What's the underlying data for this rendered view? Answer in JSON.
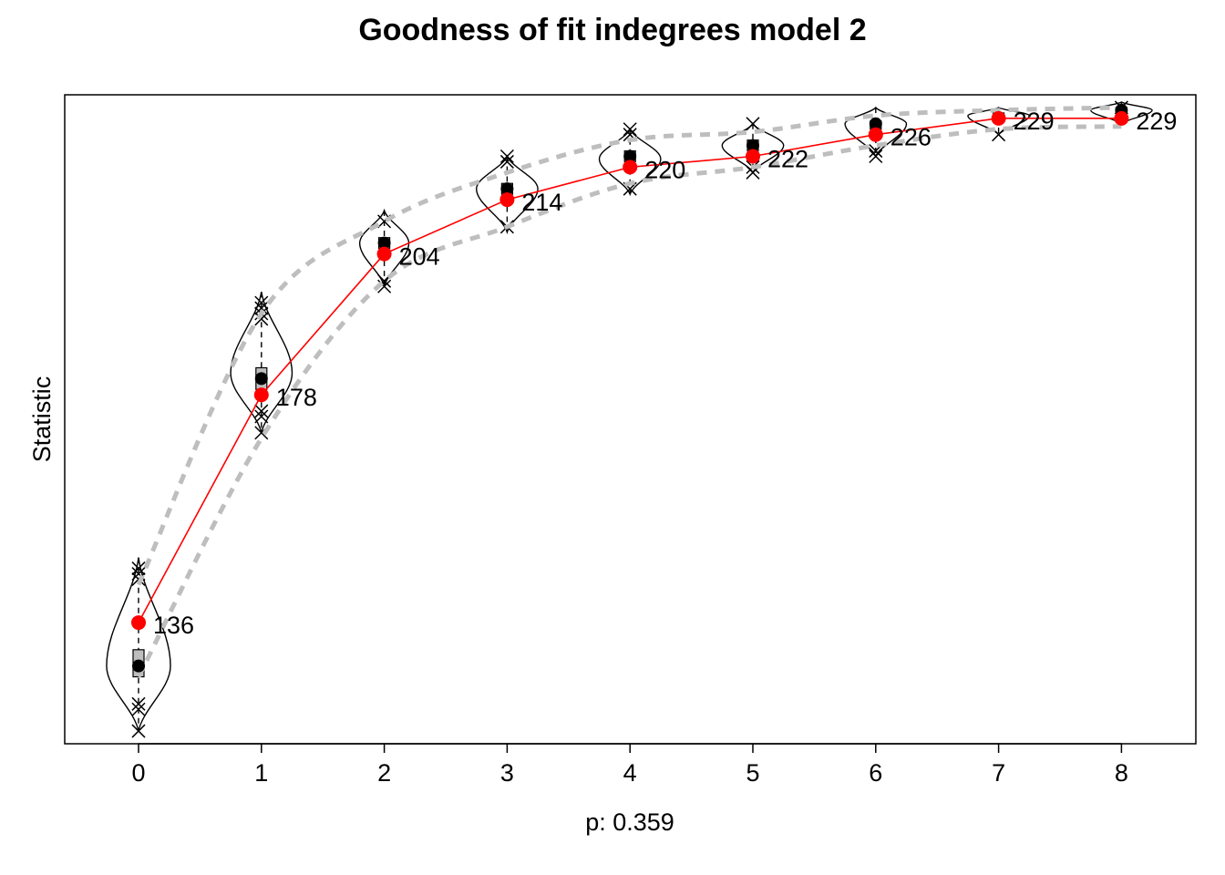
{
  "chart_data": {
    "type": "violin",
    "title": "Goodness of fit indegrees model 2",
    "xlabel": "p: 0.359",
    "ylabel": "Statistic",
    "categories": [
      "0",
      "1",
      "2",
      "3",
      "4",
      "5",
      "6",
      "7",
      "8"
    ],
    "ylim": [
      115,
      232
    ],
    "y_ticks_shown": false,
    "grid": false,
    "colors": {
      "observed": "#ff0000",
      "ci_band": "#bebebe",
      "violin": "#000000",
      "box_fill": "#bebebe"
    },
    "observed": {
      "values": [
        136,
        178,
        204,
        214,
        220,
        222,
        226,
        229,
        229
      ],
      "labels": [
        "136",
        "178",
        "204",
        "214",
        "220",
        "222",
        "226",
        "229",
        "229"
      ]
    },
    "simulated_mean": [
      128,
      181,
      206,
      216,
      222,
      224,
      228,
      229,
      230.5
    ],
    "ci_upper": [
      143,
      193,
      210,
      219,
      225,
      226.5,
      229.5,
      230.5,
      231
    ],
    "ci_lower": [
      126,
      170,
      199,
      209,
      217,
      220,
      224,
      227,
      227.5
    ],
    "violins": [
      {
        "min": 116,
        "max": 148,
        "q1": 126,
        "median": 128,
        "q3": 131,
        "peak": 128,
        "width": 0.26,
        "outliers": [
          144,
          145,
          146,
          120,
          121,
          116
        ]
      },
      {
        "min": 171,
        "max": 197,
        "q1": 179,
        "median": 181,
        "q3": 183,
        "peak": 182,
        "width": 0.25,
        "outliers": [
          195,
          194,
          193,
          192,
          175,
          174,
          171
        ]
      },
      {
        "min": 198,
        "max": 212,
        "q1": 205,
        "median": 206,
        "q3": 207,
        "peak": 206,
        "width": 0.2,
        "outliers": [
          210,
          199,
          198
        ]
      },
      {
        "min": 208,
        "max": 222,
        "q1": 215,
        "median": 216,
        "q3": 217,
        "peak": 216,
        "width": 0.25,
        "outliers": [
          221,
          222,
          209
        ]
      },
      {
        "min": 215,
        "max": 227,
        "q1": 221,
        "median": 222,
        "q3": 223,
        "peak": 221.5,
        "width": 0.25,
        "outliers": [
          226,
          227,
          216
        ]
      },
      {
        "min": 219,
        "max": 228,
        "q1": 223,
        "median": 224,
        "q3": 225,
        "peak": 224,
        "width": 0.25,
        "outliers": [
          228,
          220,
          219
        ]
      },
      {
        "min": 222,
        "max": 231,
        "q1": 227,
        "median": 228,
        "q3": 228.5,
        "peak": 228,
        "width": 0.25,
        "outliers": [
          223,
          222
        ]
      },
      {
        "min": 226,
        "max": 231,
        "q1": 229,
        "median": 229.5,
        "q3": 230,
        "peak": 229.5,
        "width": 0.25,
        "outliers": [
          226
        ]
      },
      {
        "min": 228,
        "max": 232,
        "q1": 230,
        "median": 230.5,
        "q3": 231,
        "peak": 230.5,
        "width": 0.25,
        "outliers": [
          231
        ]
      }
    ]
  }
}
